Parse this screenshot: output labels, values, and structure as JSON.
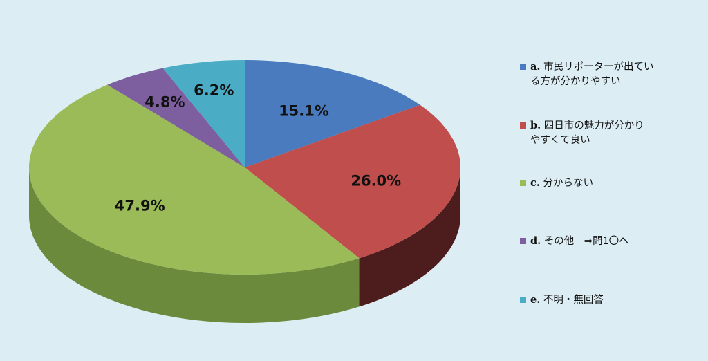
{
  "chart_data": {
    "type": "pie",
    "slices": [
      {
        "key": "a.",
        "label": "市民リポーターが出ている方が分かりやすい",
        "label_lines": [
          "市民リポーターが出てい",
          "る方が分かりやすい"
        ],
        "value": 15.1,
        "display": "15.1%",
        "color": "#4a7bbf",
        "side_color": "#2a4872"
      },
      {
        "key": "b.",
        "label": "四日市の魅力が分かりやすくて良い",
        "label_lines": [
          "四日市の魅力が分かり",
          "やすくて良い"
        ],
        "value": 26.0,
        "display": "26.0%",
        "color": "#c04e4c",
        "side_color": "#4d1c1c"
      },
      {
        "key": "c.",
        "label": "分からない",
        "label_lines": [
          "分からない"
        ],
        "value": 47.9,
        "display": "47.9%",
        "color": "#9bbb58",
        "side_color": "#6b8a3c"
      },
      {
        "key": "d.",
        "label": "その他 ⇒問1〇へ",
        "label_lines": [
          "その他　⇒問1〇へ"
        ],
        "value": 4.8,
        "display": "4.8%",
        "color": "#7d5fa0",
        "side_color": "#4a3763"
      },
      {
        "key": "e.",
        "label": "不明・無回答",
        "label_lines": [
          "不明・無回答"
        ],
        "value": 6.2,
        "display": "6.2%",
        "color": "#4bacc6",
        "side_color": "#2d6c80"
      }
    ],
    "legend_position": "right",
    "style": "3d-pie"
  }
}
